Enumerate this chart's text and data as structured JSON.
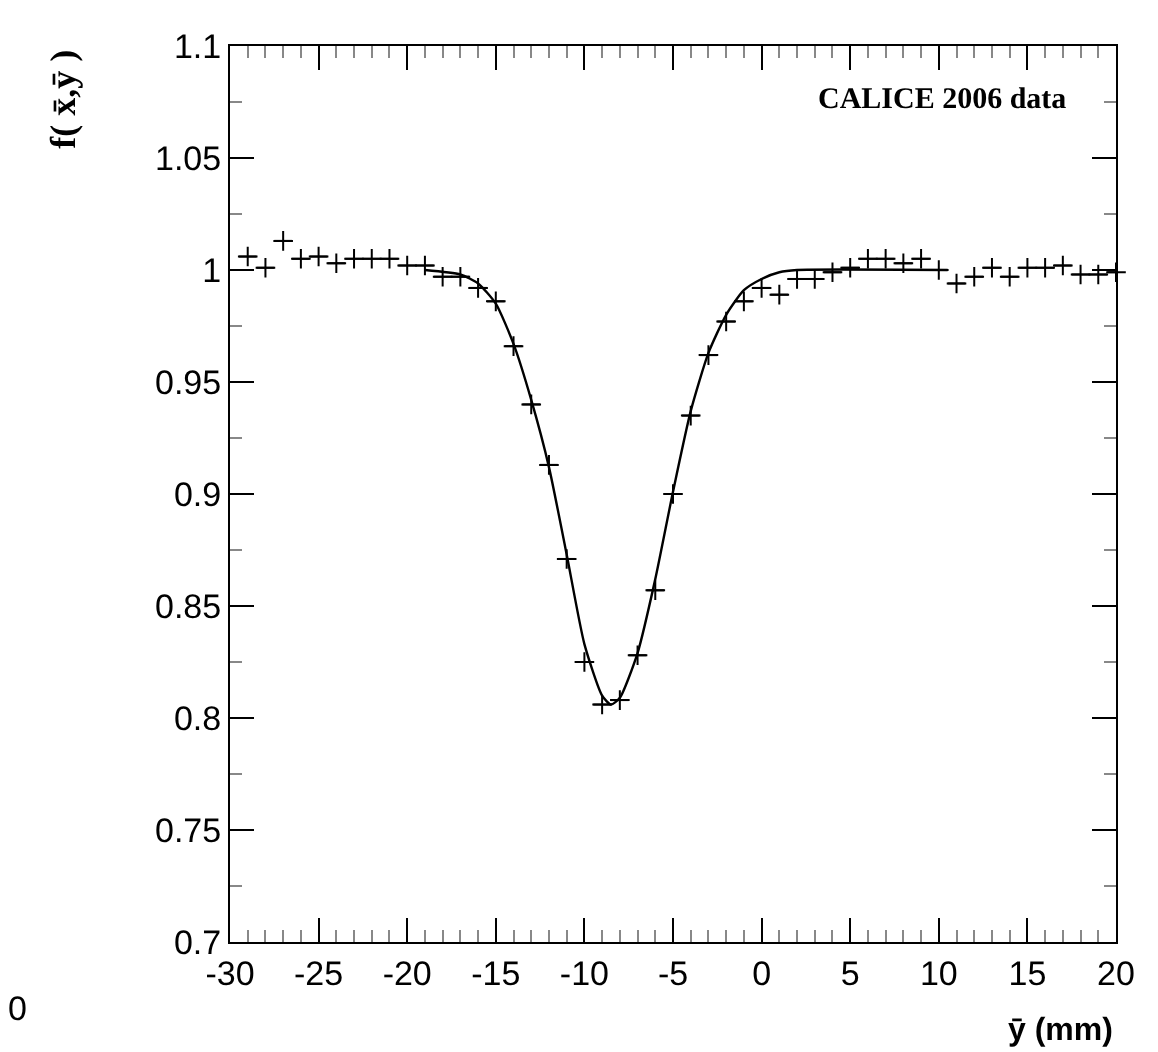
{
  "chart_data": {
    "type": "scatter",
    "xlabel": "ȳ (mm)",
    "ylabel": "f( x̄,ȳ )",
    "annotations": [
      "CALICE 2006 data",
      "0"
    ],
    "xlim": [
      -30,
      20
    ],
    "xticks": [
      -30,
      -25,
      -20,
      -15,
      -10,
      -5,
      0,
      5,
      10,
      15,
      20
    ],
    "ylim": [
      0.7,
      1.1
    ],
    "yticks": [
      0.7,
      0.75,
      0.8,
      0.85,
      0.9,
      0.95,
      1,
      1.05,
      1.1
    ],
    "series": [
      {
        "color": "#000000",
        "marker": "cross",
        "x": [
          -29,
          -28,
          -27,
          -26,
          -25,
          -24,
          -23,
          -22,
          -21,
          -20,
          -19,
          -18,
          -17,
          -16,
          -15,
          -14,
          -13,
          -12,
          -11,
          -10,
          -9,
          -8,
          -7,
          -6,
          -5,
          -4,
          -3,
          -2,
          -1,
          0,
          1,
          2,
          3,
          4,
          5,
          6,
          7,
          8,
          9,
          10,
          11,
          12,
          13,
          14,
          15,
          16,
          17,
          18,
          19,
          20
        ],
        "values": [
          1.006,
          1.001,
          1.013,
          1.005,
          1.006,
          1.003,
          1.005,
          1.005,
          1.005,
          1.002,
          1.002,
          0.997,
          0.997,
          0.992,
          0.986,
          0.966,
          0.94,
          0.913,
          0.871,
          0.825,
          0.806,
          0.808,
          0.828,
          0.857,
          0.9,
          0.935,
          0.962,
          0.977,
          0.986,
          0.992,
          0.989,
          0.996,
          0.996,
          0.999,
          1.001,
          1.005,
          1.005,
          1.003,
          1.005,
          1.0,
          0.994,
          0.997,
          1.001,
          0.997,
          1.001,
          1.001,
          1.002,
          0.998,
          0.998,
          0.999
        ],
        "xerrors": [
          0.5,
          0.5,
          0.5,
          0.5,
          0.5,
          0.5,
          0.5,
          0.5,
          0.5,
          0.5,
          0.5,
          0.5,
          0.5,
          0.5,
          0.5,
          0.5,
          0.5,
          0.5,
          0.5,
          0.5,
          0.5,
          0.5,
          0.5,
          0.5,
          0.5,
          0.5,
          0.5,
          0.5,
          0.5,
          0.5,
          0.5,
          0.5,
          0.5,
          0.5,
          0.5,
          0.5,
          0.5,
          0.5,
          0.5,
          0.5,
          0.5,
          0.5,
          0.5,
          0.5,
          0.5,
          0.5,
          0.5,
          0.5,
          0.5,
          0.5
        ]
      },
      {
        "type": "line",
        "color": "#000000",
        "line_style": "solid",
        "x": [
          -19,
          -17,
          -16,
          -15,
          -14,
          -13,
          -12,
          -11,
          -10,
          -9,
          -8.5,
          -8,
          -7,
          -6,
          -5,
          -4,
          -3,
          -2,
          -1,
          0,
          1,
          2,
          10.5
        ],
        "values": [
          1.0,
          0.998,
          0.994,
          0.985,
          0.967,
          0.942,
          0.912,
          0.873,
          0.833,
          0.81,
          0.806,
          0.809,
          0.829,
          0.862,
          0.901,
          0.937,
          0.963,
          0.98,
          0.991,
          0.996,
          0.999,
          1.0,
          1.0
        ]
      }
    ]
  }
}
